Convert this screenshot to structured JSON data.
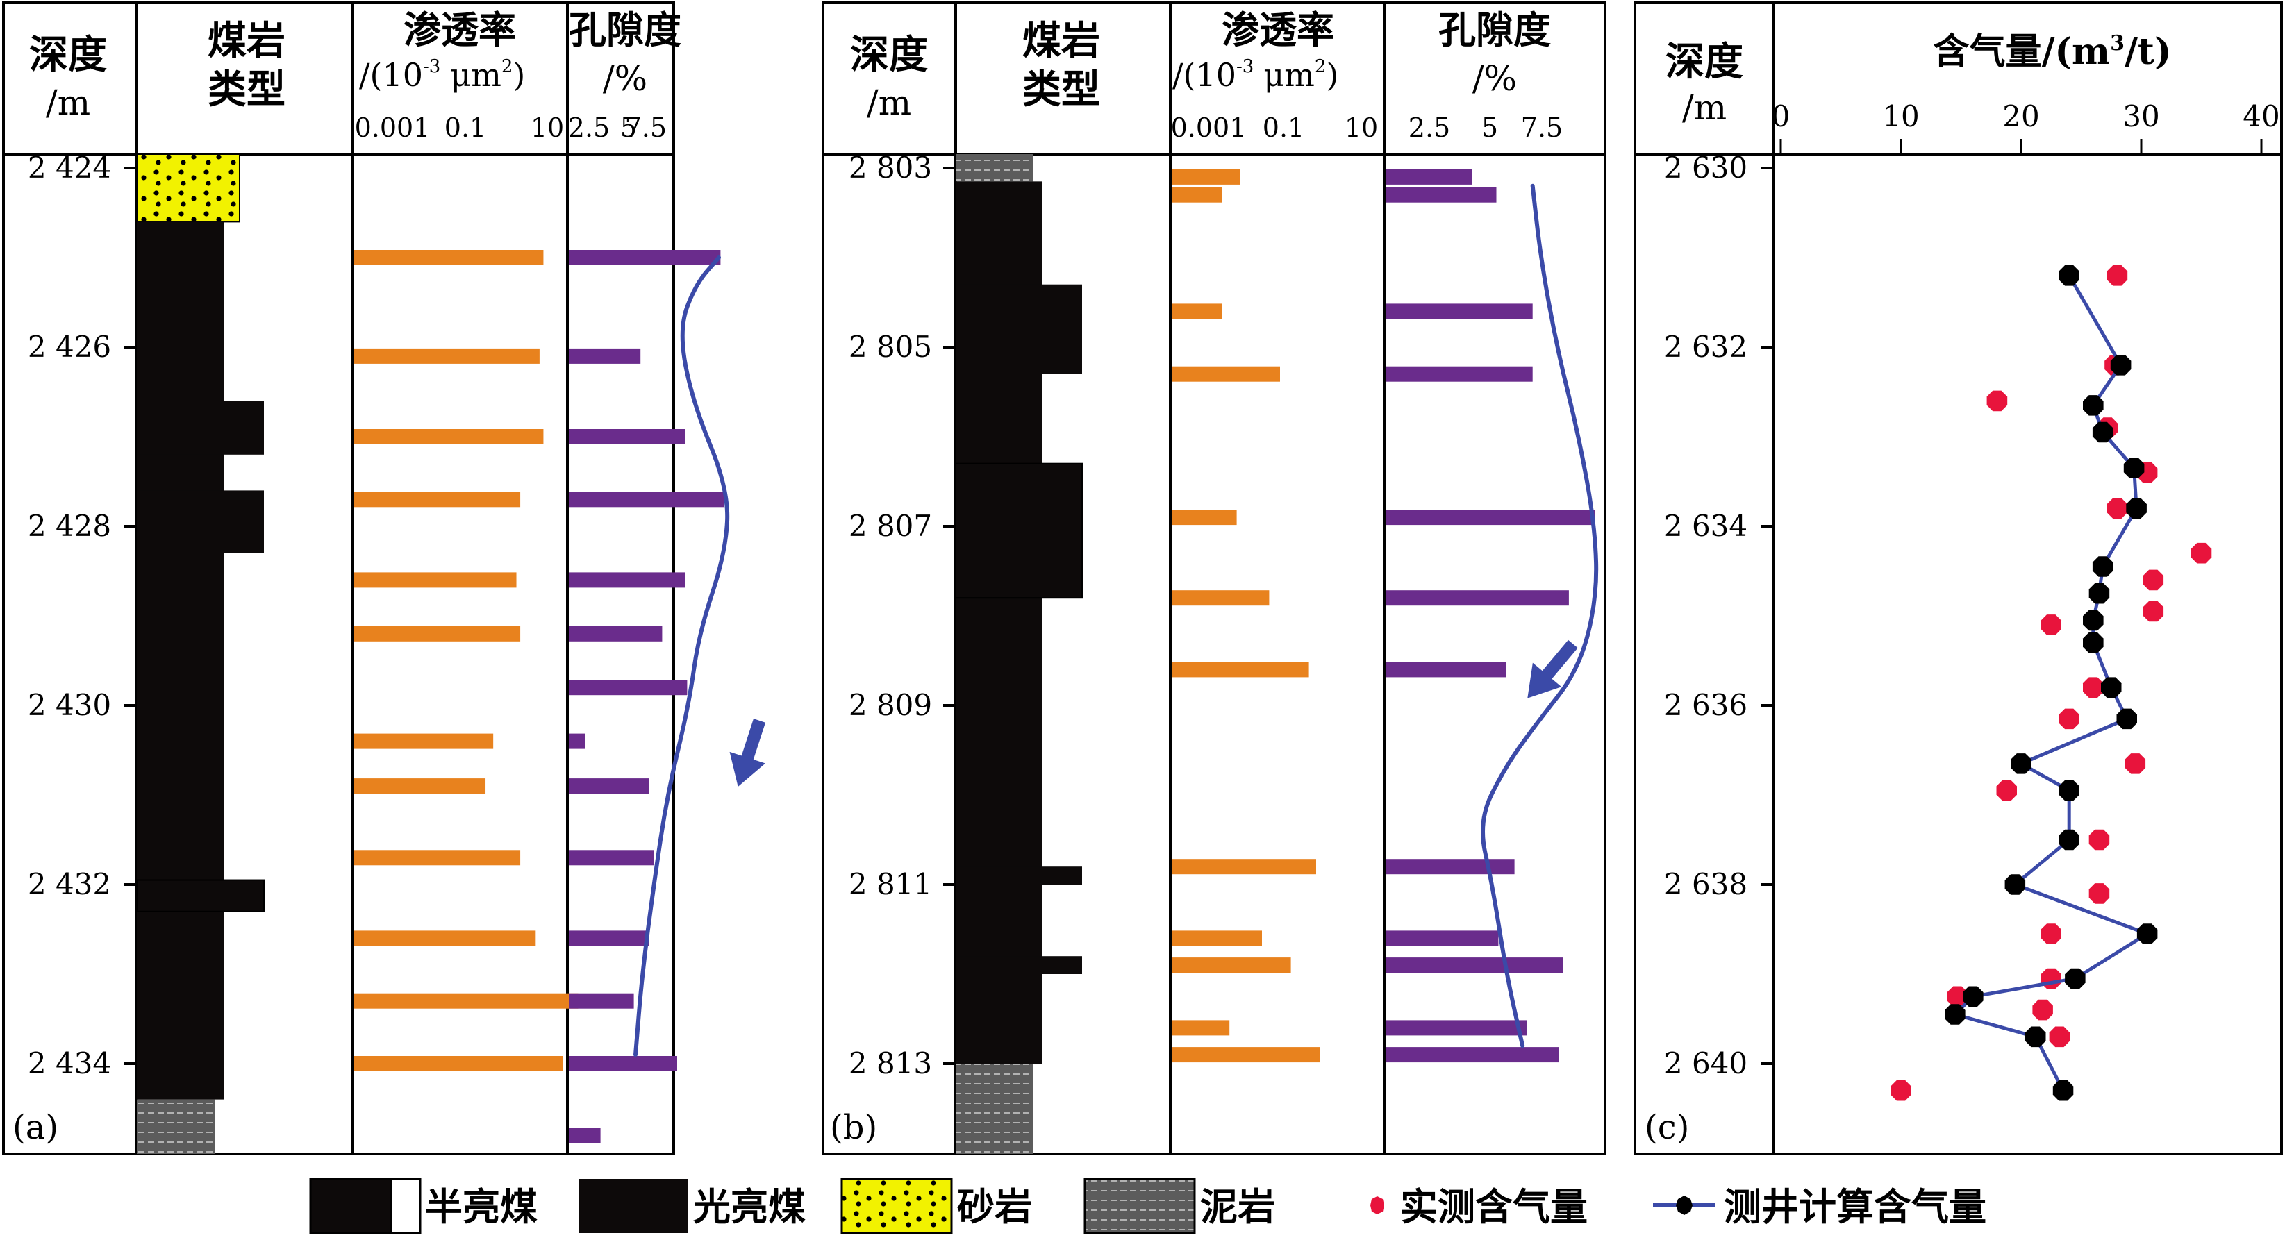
{
  "colors": {
    "coal": "#0d0a0a",
    "sandstone": "#f2f200",
    "mudstone": "#5a5a5a",
    "perm_bar": "#e8821e",
    "poro_bar": "#6a2c8c",
    "trend_line": "#3b4aa8",
    "measured": "#e8143c",
    "calculated": "#000000"
  },
  "headers": {
    "depth": "深度",
    "depth_unit": "/m",
    "coal_type_1": "煤岩",
    "coal_type_2": "类型",
    "perm": "渗透率",
    "perm_unit_a": "/(10",
    "perm_unit_exp": "-3",
    "perm_unit_b": "μm",
    "perm_unit_sq": "2",
    "perm_unit_c": ")",
    "perm_ticks": [
      "0.001",
      "0.1",
      "10"
    ],
    "poro": "孔隙度",
    "poro_unit": "/%",
    "poro_ticks": [
      "2.5",
      "5",
      "7.5"
    ],
    "gas_a": "含气量/(m",
    "gas_exp": "3",
    "gas_b": "/t)",
    "gas_ticks": [
      "0",
      "10",
      "20",
      "30",
      "40"
    ]
  },
  "legend": {
    "semi_bright": "半亮煤",
    "bright": "光亮煤",
    "sandstone": "砂岩",
    "mudstone": "泥岩",
    "measured": "实测含气量",
    "calculated": "测井计算含气量"
  },
  "chart_data": [
    {
      "type": "bar",
      "panel": "a",
      "panel_label": "(a)",
      "depth_range": [
        2423.7,
        2435.2
      ],
      "depth_ticks": [
        "2 424",
        "2 426",
        "2 428",
        "2 430",
        "2 432",
        "2 434"
      ],
      "lithology": [
        {
          "type": "sandstone",
          "top": 2423.7,
          "bottom": 2424.6
        },
        {
          "type": "bright_coal",
          "top": 2424.6,
          "bottom": 2434.4
        },
        {
          "type": "bright_coal_wide",
          "top": 2426.6,
          "bottom": 2427.2
        },
        {
          "type": "bright_coal_wide",
          "top": 2427.6,
          "bottom": 2428.3
        },
        {
          "type": "semi_bright_coal",
          "top": 2431.95,
          "bottom": 2432.3
        },
        {
          "type": "mudstone",
          "top": 2434.4,
          "bottom": 2435.2
        }
      ],
      "permeability_log10": [
        {
          "depth": 2425.0,
          "value": 1.9
        },
        {
          "depth": 2426.1,
          "value": 1.8
        },
        {
          "depth": 2427.0,
          "value": 1.9
        },
        {
          "depth": 2427.7,
          "value": 1.3
        },
        {
          "depth": 2428.6,
          "value": 1.2
        },
        {
          "depth": 2429.2,
          "value": 1.3
        },
        {
          "depth": 2430.4,
          "value": 0.6
        },
        {
          "depth": 2430.9,
          "value": 0.4
        },
        {
          "depth": 2431.7,
          "value": 1.3
        },
        {
          "depth": 2432.6,
          "value": 1.7
        },
        {
          "depth": 2433.3,
          "value": 2.8
        },
        {
          "depth": 2434.0,
          "value": 2.4
        }
      ],
      "porosity": [
        {
          "depth": 2425.0,
          "value": 9.1
        },
        {
          "depth": 2426.1,
          "value": 4.3
        },
        {
          "depth": 2427.0,
          "value": 7.0
        },
        {
          "depth": 2427.7,
          "value": 9.3
        },
        {
          "depth": 2428.6,
          "value": 7.0
        },
        {
          "depth": 2429.2,
          "value": 5.6
        },
        {
          "depth": 2429.8,
          "value": 7.1
        },
        {
          "depth": 2430.4,
          "value": 1.0
        },
        {
          "depth": 2430.9,
          "value": 4.8
        },
        {
          "depth": 2431.7,
          "value": 5.1
        },
        {
          "depth": 2432.6,
          "value": 4.8
        },
        {
          "depth": 2433.3,
          "value": 3.9
        },
        {
          "depth": 2434.0,
          "value": 6.5
        },
        {
          "depth": 2434.8,
          "value": 1.9
        }
      ],
      "trend": [
        [
          2425.0,
          9.0
        ],
        [
          2425.3,
          7.6
        ],
        [
          2425.8,
          6.6
        ],
        [
          2426.6,
          7.4
        ],
        [
          2427.6,
          9.6
        ],
        [
          2428.3,
          9.4
        ],
        [
          2429.2,
          7.8
        ],
        [
          2430.0,
          7.2
        ],
        [
          2431.0,
          5.9
        ],
        [
          2432.0,
          5.1
        ],
        [
          2433.0,
          4.4
        ],
        [
          2433.9,
          4.0
        ]
      ]
    },
    {
      "type": "bar",
      "panel": "b",
      "panel_label": "(b)",
      "depth_range": [
        2802.8,
        2814.2
      ],
      "depth_ticks": [
        "2 803",
        "2 805",
        "2 807",
        "2 809",
        "2 811",
        "2 813"
      ],
      "lithology": [
        {
          "type": "mudstone",
          "top": 2802.8,
          "bottom": 2803.15
        },
        {
          "type": "bright_coal",
          "top": 2803.15,
          "bottom": 2813.0
        },
        {
          "type": "bright_coal_wide",
          "top": 2804.3,
          "bottom": 2805.3
        },
        {
          "type": "semi_bright_coal",
          "top": 2806.3,
          "bottom": 2807.8
        },
        {
          "type": "bright_coal_wide",
          "top": 2810.8,
          "bottom": 2811.0
        },
        {
          "type": "bright_coal_wide",
          "top": 2811.8,
          "bottom": 2812.0
        },
        {
          "type": "mudstone",
          "top": 2813.0,
          "bottom": 2814.2
        }
      ],
      "permeability_log10": [
        {
          "depth": 2803.1,
          "value": -1.1
        },
        {
          "depth": 2803.3,
          "value": -1.6
        },
        {
          "depth": 2804.6,
          "value": -1.6
        },
        {
          "depth": 2805.3,
          "value": 0.0
        },
        {
          "depth": 2806.9,
          "value": -1.2
        },
        {
          "depth": 2807.8,
          "value": -0.3
        },
        {
          "depth": 2808.6,
          "value": 0.8
        },
        {
          "depth": 2810.8,
          "value": 1.0
        },
        {
          "depth": 2811.6,
          "value": -0.5
        },
        {
          "depth": 2811.9,
          "value": 0.3
        },
        {
          "depth": 2812.6,
          "value": -1.4
        },
        {
          "depth": 2812.9,
          "value": 1.1
        }
      ],
      "porosity": [
        {
          "depth": 2803.1,
          "value": 4.3
        },
        {
          "depth": 2803.3,
          "value": 5.5
        },
        {
          "depth": 2804.6,
          "value": 7.3
        },
        {
          "depth": 2805.3,
          "value": 7.3
        },
        {
          "depth": 2806.9,
          "value": 10.4
        },
        {
          "depth": 2807.8,
          "value": 9.1
        },
        {
          "depth": 2808.6,
          "value": 6.0
        },
        {
          "depth": 2810.8,
          "value": 6.4
        },
        {
          "depth": 2811.6,
          "value": 5.6
        },
        {
          "depth": 2811.9,
          "value": 8.8
        },
        {
          "depth": 2812.6,
          "value": 7.0
        },
        {
          "depth": 2812.9,
          "value": 8.6
        }
      ],
      "trend": [
        [
          2803.2,
          7.3
        ],
        [
          2804.0,
          7.7
        ],
        [
          2805.0,
          8.5
        ],
        [
          2806.0,
          9.6
        ],
        [
          2807.0,
          10.4
        ],
        [
          2807.8,
          10.5
        ],
        [
          2808.6,
          9.6
        ],
        [
          2809.2,
          7.5
        ],
        [
          2809.7,
          5.9
        ],
        [
          2810.3,
          4.6
        ],
        [
          2811.0,
          5.3
        ],
        [
          2812.0,
          6.0
        ],
        [
          2812.8,
          6.8
        ]
      ]
    },
    {
      "type": "line",
      "panel": "c",
      "panel_label": "(c)",
      "xlim": [
        0,
        40
      ],
      "ylim": [
        2630,
        2640.5
      ],
      "depth_ticks": [
        "2 630",
        "2 632",
        "2 634",
        "2 636",
        "2 638",
        "2 640"
      ],
      "series": [
        {
          "key": "measured",
          "style": "points",
          "points": [
            [
              28.0,
              2631.2
            ],
            [
              27.8,
              2632.2
            ],
            [
              18.0,
              2632.6
            ],
            [
              27.2,
              2632.9
            ],
            [
              30.5,
              2633.4
            ],
            [
              28.0,
              2633.8
            ],
            [
              35.0,
              2634.3
            ],
            [
              31.0,
              2634.6
            ],
            [
              31.0,
              2634.95
            ],
            [
              22.5,
              2635.1
            ],
            [
              26.0,
              2635.8
            ],
            [
              24.0,
              2636.15
            ],
            [
              29.5,
              2636.65
            ],
            [
              18.8,
              2636.95
            ],
            [
              26.5,
              2637.5
            ],
            [
              26.5,
              2638.1
            ],
            [
              22.5,
              2638.55
            ],
            [
              22.5,
              2639.05
            ],
            [
              14.7,
              2639.25
            ],
            [
              21.8,
              2639.4
            ],
            [
              23.2,
              2639.7
            ],
            [
              10.0,
              2640.3
            ]
          ]
        },
        {
          "key": "calculated",
          "style": "line+points",
          "points": [
            [
              24.0,
              2631.2
            ],
            [
              28.3,
              2632.2
            ],
            [
              26.0,
              2632.65
            ],
            [
              26.8,
              2632.95
            ],
            [
              29.4,
              2633.35
            ],
            [
              29.6,
              2633.8
            ],
            [
              26.8,
              2634.45
            ],
            [
              26.5,
              2634.75
            ],
            [
              26.0,
              2635.05
            ],
            [
              26.0,
              2635.3
            ],
            [
              27.5,
              2635.8
            ],
            [
              28.8,
              2636.15
            ],
            [
              20.0,
              2636.65
            ],
            [
              24.0,
              2636.95
            ],
            [
              24.0,
              2637.5
            ],
            [
              19.5,
              2638.0
            ],
            [
              30.5,
              2638.55
            ],
            [
              24.5,
              2639.05
            ],
            [
              16.0,
              2639.25
            ],
            [
              14.5,
              2639.45
            ],
            [
              21.2,
              2639.7
            ],
            [
              23.5,
              2640.3
            ]
          ]
        }
      ]
    }
  ]
}
